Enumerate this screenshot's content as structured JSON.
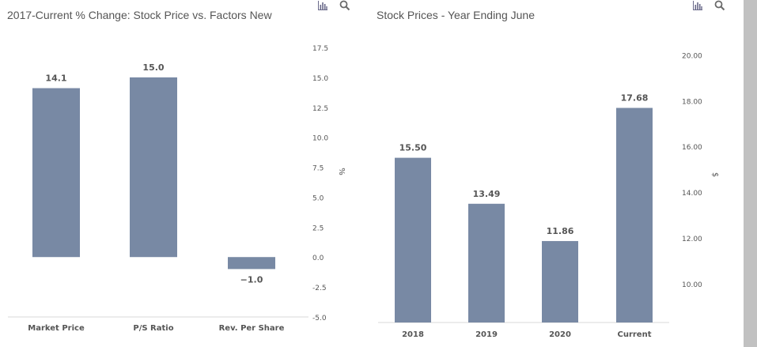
{
  "charts": [
    {
      "id": "left",
      "title": "2017-Current % Change: Stock Price vs. Factors New",
      "toolbar": {
        "icons": [
          "bar-chart-icon",
          "search-icon"
        ]
      }
    },
    {
      "id": "right",
      "title": "Stock Prices - Year Ending June",
      "toolbar": {
        "icons": [
          "bar-chart-icon",
          "search-icon"
        ]
      }
    }
  ],
  "colors": {
    "bar": "#7889a4",
    "axis_text": "#555555",
    "label_text": "#555555",
    "grid_line": "#d8d8d8"
  },
  "chart_data": [
    {
      "type": "bar",
      "title": "2017-Current % Change: Stock Price vs. Factors New",
      "categories": [
        "Market Price",
        "P/S Ratio",
        "Rev. Per Share"
      ],
      "values": [
        14.1,
        15.0,
        -1.0
      ],
      "data_labels": [
        "14.1",
        "15.0",
        "−1.0"
      ],
      "ylabel": "%",
      "ylim": [
        -5.0,
        17.5
      ],
      "yticks": [
        17.5,
        15.0,
        12.5,
        10.0,
        7.5,
        5.0,
        2.5,
        0.0,
        -2.5,
        -5.0
      ],
      "ytick_labels": [
        "17.5",
        "15.0",
        "12.5",
        "10.0",
        "7.5",
        "5.0",
        "2.5",
        "0.0",
        "-2.5",
        "-5.0"
      ],
      "y_axis_position": "right",
      "grid": false
    },
    {
      "type": "bar",
      "title": "Stock Prices - Year Ending June",
      "categories": [
        "2018",
        "2019",
        "2020",
        "Current"
      ],
      "values": [
        15.5,
        13.49,
        11.86,
        17.68
      ],
      "data_labels": [
        "15.50",
        "13.49",
        "11.86",
        "17.68"
      ],
      "ylabel": "$",
      "ylim": [
        8.3,
        20.6
      ],
      "yticks": [
        20.0,
        18.0,
        16.0,
        14.0,
        12.0,
        10.0
      ],
      "ytick_labels": [
        "20.00",
        "18.00",
        "16.00",
        "14.00",
        "12.00",
        "10.00"
      ],
      "y_axis_position": "right",
      "grid": false
    }
  ]
}
